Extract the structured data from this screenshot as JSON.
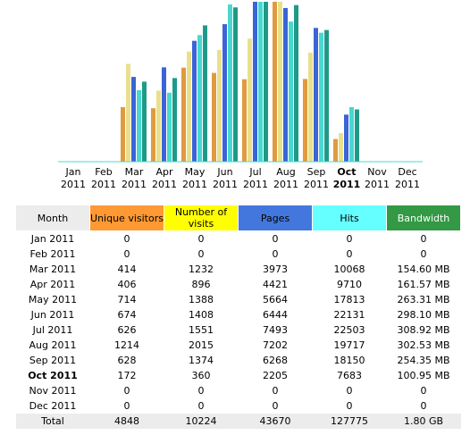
{
  "chart": {
    "labels": [
      [
        "Jan",
        "2011"
      ],
      [
        "Feb",
        "2011"
      ],
      [
        "Mar",
        "2011"
      ],
      [
        "Apr",
        "2011"
      ],
      [
        "May",
        "2011"
      ],
      [
        "Jun",
        "2011"
      ],
      [
        "Jul",
        "2011"
      ],
      [
        "Aug",
        "2011"
      ],
      [
        "Sep",
        "2011"
      ],
      [
        "Oct",
        "2011"
      ],
      [
        "Nov",
        "2011"
      ],
      [
        "Dec",
        "2011"
      ]
    ],
    "colors": [
      "#e09a40",
      "#e8e08c",
      "#3a64d8",
      "#48d8d0",
      "#1e9a88"
    ]
  },
  "highlight": "Oct 2011",
  "table": {
    "headers": [
      "Month",
      "Unique visitors",
      "Number of visits",
      "Pages",
      "Hits",
      "Bandwidth"
    ],
    "header_colors": [
      "#ececec",
      "#ff9933",
      "#ffff00",
      "#4477dd",
      "#66ffff",
      "#339944"
    ],
    "rows": [
      [
        "Jan 2011",
        0,
        0,
        0,
        0,
        0
      ],
      [
        "Feb 2011",
        0,
        0,
        0,
        0,
        0
      ],
      [
        "Mar 2011",
        414,
        1232,
        3973,
        10068,
        {
          "value": 154.6,
          "label": "154.60 MB"
        }
      ],
      [
        "Apr 2011",
        406,
        896,
        4421,
        9710,
        {
          "value": 161.57,
          "label": "161.57 MB"
        }
      ],
      [
        "May 2011",
        714,
        1388,
        5664,
        17813,
        {
          "value": 263.31,
          "label": "263.31 MB"
        }
      ],
      [
        "Jun 2011",
        674,
        1408,
        6444,
        22131,
        {
          "value": 298.1,
          "label": "298.10 MB"
        }
      ],
      [
        "Jul 2011",
        626,
        1551,
        7493,
        22503,
        {
          "value": 308.92,
          "label": "308.92 MB"
        }
      ],
      [
        "Aug 2011",
        1214,
        2015,
        7202,
        19717,
        {
          "value": 302.53,
          "label": "302.53 MB"
        }
      ],
      [
        "Sep 2011",
        628,
        1374,
        6268,
        18150,
        {
          "value": 254.35,
          "label": "254.35 MB"
        }
      ],
      [
        "Oct 2011",
        172,
        360,
        2205,
        7683,
        {
          "value": 100.95,
          "label": "100.95 MB"
        }
      ],
      [
        "Nov 2011",
        0,
        0,
        0,
        0,
        0
      ],
      [
        "Dec 2011",
        0,
        0,
        0,
        0,
        0
      ]
    ],
    "total": [
      "Total",
      4848,
      10224,
      43670,
      127775,
      "1.80 GB"
    ]
  }
}
